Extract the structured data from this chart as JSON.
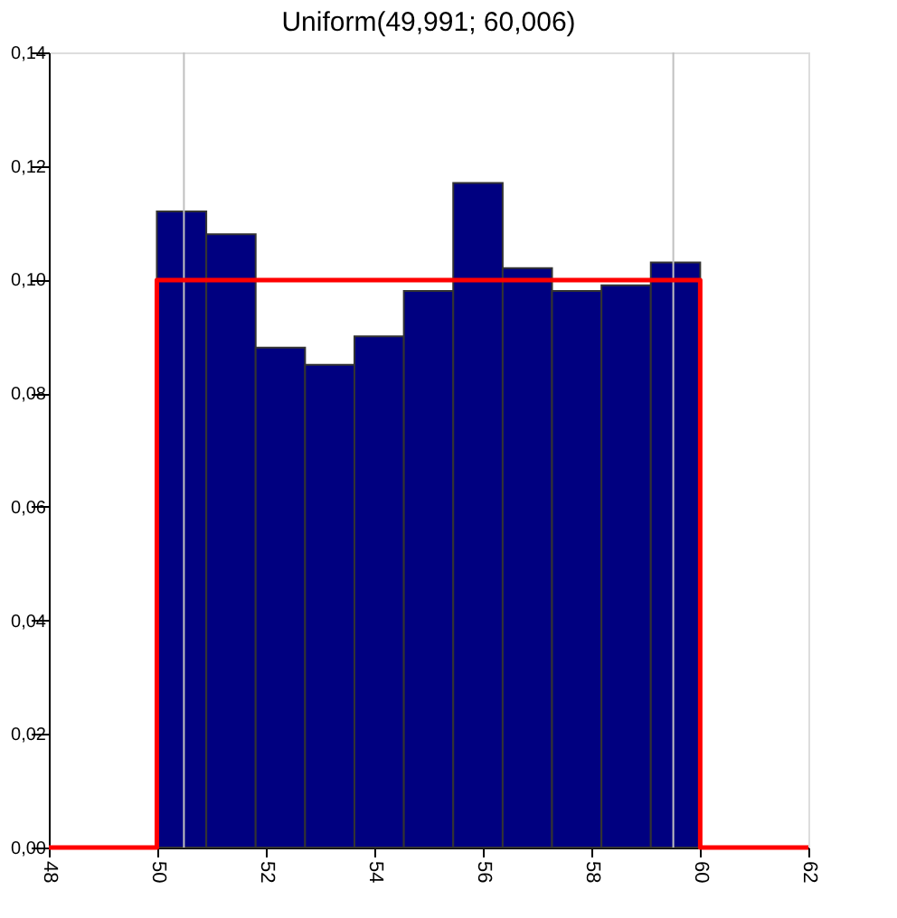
{
  "chart_data": {
    "type": "histogram",
    "title": "Uniform(49,991; 60,006)",
    "bins": [
      49.991,
      50.902,
      51.812,
      52.723,
      53.633,
      54.544,
      55.454,
      56.365,
      57.275,
      58.186,
      59.096,
      60.006
    ],
    "values": [
      0.112,
      0.108,
      0.088,
      0.085,
      0.09,
      0.098,
      0.117,
      0.102,
      0.098,
      0.099,
      0.103
    ],
    "color": "#000080",
    "series": [
      {
        "type": "line",
        "color": "#ff0000",
        "x": [
          48,
          49.991,
          49.991,
          60.006,
          60.006,
          62
        ],
        "values": [
          0,
          0,
          0.0999,
          0.0999,
          0,
          0
        ]
      }
    ],
    "xlim": [
      48,
      62
    ],
    "xticks": [
      48,
      50,
      52,
      54,
      56,
      58,
      60,
      62
    ],
    "ylim": [
      0,
      0.14
    ],
    "yticks": [
      {
        "value": 0,
        "label": "0,00"
      },
      {
        "value": 0.02,
        "label": "0,02"
      },
      {
        "value": 0.04,
        "label": "0,04"
      },
      {
        "value": 0.06,
        "label": "0,06"
      },
      {
        "value": 0.08,
        "label": "0,08"
      },
      {
        "value": 0.1,
        "label": "0,10"
      },
      {
        "value": 0.12,
        "label": "0,12"
      },
      {
        "value": 0.14,
        "label": "0,14"
      }
    ],
    "ref_lines": [
      {
        "axis": "x",
        "value": 50.49,
        "color": "#c0c0c0"
      },
      {
        "axis": "x",
        "value": 59.51,
        "color": "#c0c0c0"
      }
    ],
    "grid": false
  }
}
